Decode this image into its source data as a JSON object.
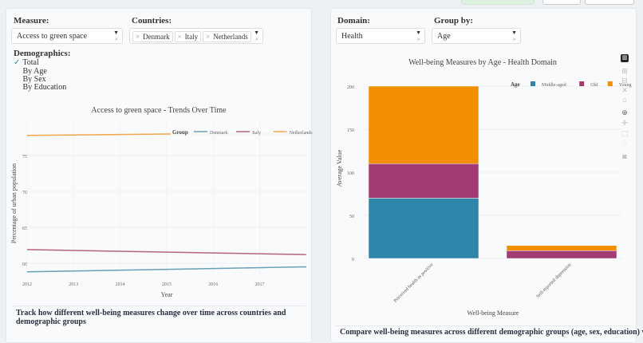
{
  "left": {
    "measure_label": "Measure:",
    "measure_value": "Access to green space",
    "countries_label": "Countries:",
    "countries": [
      "Denmark",
      "Italy",
      "Netherlands"
    ],
    "demographics_label": "Demographics:",
    "demographics": [
      {
        "label": "Total",
        "checked": true
      },
      {
        "label": "By Age",
        "checked": false
      },
      {
        "label": "By Sex",
        "checked": false
      },
      {
        "label": "By Education",
        "checked": false
      }
    ],
    "description": "Track how different well-being measures change over time across countries and demographic groups"
  },
  "right": {
    "domain_label": "Domain:",
    "domain_value": "Health",
    "group_label": "Group by:",
    "group_value": "Age",
    "description": "Compare well-being measures across different demographic groups (age, sex, education) within"
  },
  "chart_data": [
    {
      "type": "line",
      "title": "Access to green space - Trends Over Time",
      "xlabel": "Year",
      "ylabel": "Percentage of urban population",
      "x_ticks": [
        "2012",
        "2013",
        "2014",
        "2015",
        "2016",
        "2017"
      ],
      "y_ticks": [
        60,
        65,
        70,
        75
      ],
      "legend_title": "Group",
      "legend": "top-right",
      "series": [
        {
          "name": "Denmark",
          "color": "#6a9fb5",
          "x": [
            2012,
            2018
          ],
          "y": [
            58.8,
            59.5
          ]
        },
        {
          "name": "Italy",
          "color": "#b5657e",
          "x": [
            2012,
            2018
          ],
          "y": [
            61.9,
            61.2
          ]
        },
        {
          "name": "Netherlands",
          "color": "#f0a84a",
          "x": [
            2012,
            2015,
            2018
          ],
          "y": [
            77.8,
            78.0,
            78.0
          ]
        }
      ]
    },
    {
      "type": "bar",
      "stacked": true,
      "title": "Well-being Measures by Age - Health Domain",
      "xlabel": "Well-being Measure",
      "ylabel": "Average Value",
      "ylim": [
        0,
        200
      ],
      "y_ticks": [
        0,
        50,
        100,
        150,
        200
      ],
      "categories": [
        "Perceived health as positive",
        "Self-reported depression"
      ],
      "legend_title": "Age",
      "legend": "top-right",
      "series": [
        {
          "name": "Middle-aged",
          "color": "#2e86ab",
          "values": [
            70,
            0
          ]
        },
        {
          "name": "Old",
          "color": "#a23b72",
          "values": [
            40,
            9
          ]
        },
        {
          "name": "Young",
          "color": "#f18f01",
          "values": [
            90,
            6
          ]
        }
      ]
    }
  ]
}
